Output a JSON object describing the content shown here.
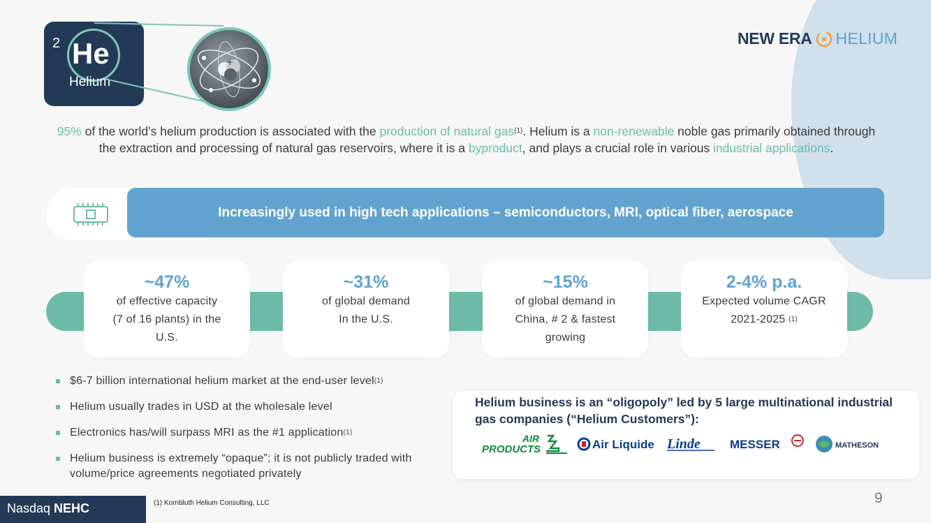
{
  "brand": {
    "bold": "NEW ERA",
    "light": "HELIUM"
  },
  "element": {
    "number": "2",
    "symbol": "He",
    "name": "Helium"
  },
  "intro": {
    "p1": "95%",
    "p2": " of the world’s helium production is associated with the ",
    "p3": "production of natural gas",
    "p3_sup": "(1)",
    "p4": ". Helium is a ",
    "p5": "non-renewable",
    "p6": " noble gas primarily obtained through the extraction and processing of natural gas reservoirs, where it is a ",
    "p7": "byproduct",
    "p8": ", and plays a crucial role in various ",
    "p9": "industrial applications",
    "p10": "."
  },
  "banner": "Increasingly used in high tech applications – semiconductors, MRI, optical fiber, aerospace",
  "stats": [
    {
      "value": "~47%",
      "line1": "of effective capacity",
      "line2": "(7 of 16 plants) in the",
      "line3": "U.S."
    },
    {
      "value": "~31%",
      "line1": "of global demand",
      "line2": "In the U.S."
    },
    {
      "value": "~15%",
      "line1": "of global demand in",
      "line2": "China, # 2  & fastest",
      "line3": "growing"
    },
    {
      "value": "2-4% p.a.",
      "line1": "Expected volume CAGR",
      "line2": "2021-2025",
      "line2_sup": "(1)"
    }
  ],
  "bullets": [
    {
      "text": "$6-7 billion international helium market at the end-user level",
      "sup": "(1)"
    },
    {
      "text": "Helium usually trades in USD at the wholesale level"
    },
    {
      "text": "Electronics has/will surpass MRI as the #1 application",
      "sup": "(1)"
    },
    {
      "text": "Helium business is extremely “opaque”; it is not publicly traded with volume/price agreements negotiated privately"
    }
  ],
  "oligopoly": {
    "title": "Helium business is an “oligopoly” led by 5 large multinational industrial gas companies (“Helium Customers”):",
    "logos": {
      "air_products_1": "AIR",
      "air_products_2": "PRODUCTS",
      "air_liquide": "Air Liquide",
      "linde": "Linde",
      "messer": "MESSER",
      "matheson": "MATHESON"
    }
  },
  "footer": {
    "ticker_prefix": "Nasdaq ",
    "ticker": "NEHC",
    "footnote": "(1) Kornbluth Helium Consulting, LLC",
    "page": "9"
  },
  "colors": {
    "navy": "#233a57",
    "teal": "#6cbba8",
    "blue": "#62a3cf",
    "air_products_green": "#0f8a3c",
    "air_liquide_blue": "#0a3e8c",
    "messer_blue": "#0b3c8c",
    "messer_red": "#d2232a"
  }
}
